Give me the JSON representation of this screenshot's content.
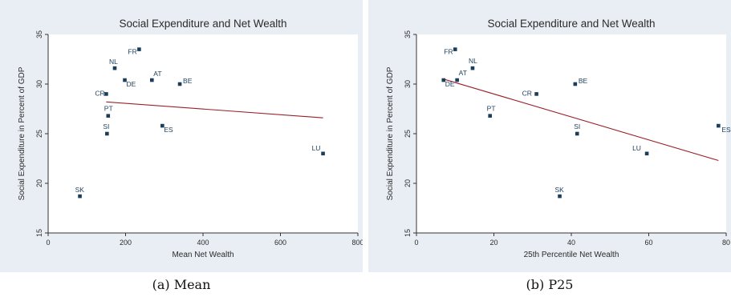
{
  "colors": {
    "outer_bg": "#e8eef3",
    "plot_bg": "#ffffff",
    "marker": "#1c3d5a",
    "label": "#1c3d5a",
    "fit_line": "#9b1f2a"
  },
  "chart_data": [
    {
      "type": "scatter",
      "title": "Social Expenditure and Net Wealth",
      "xlabel": "Mean Net Wealth",
      "ylabel": "Social Expenditure in Percent of GDP",
      "xlim": [
        0,
        800
      ],
      "ylim": [
        15,
        35
      ],
      "xticks": [
        0,
        200,
        400,
        600,
        800
      ],
      "yticks": [
        15,
        20,
        25,
        30,
        35
      ],
      "grid": false,
      "caption": "(a) Mean",
      "points": [
        {
          "label": "FR",
          "x": 235,
          "y": 33.5
        },
        {
          "label": "NL",
          "x": 172,
          "y": 31.6
        },
        {
          "label": "DE",
          "x": 198,
          "y": 30.4
        },
        {
          "label": "AT",
          "x": 268,
          "y": 30.4
        },
        {
          "label": "BE",
          "x": 340,
          "y": 30.0
        },
        {
          "label": "CR",
          "x": 150,
          "y": 29.0
        },
        {
          "label": "PT",
          "x": 155,
          "y": 26.8
        },
        {
          "label": "SI",
          "x": 152,
          "y": 25.0
        },
        {
          "label": "ES",
          "x": 295,
          "y": 25.8
        },
        {
          "label": "LU",
          "x": 710,
          "y": 23.0
        },
        {
          "label": "SK",
          "x": 82,
          "y": 18.7
        }
      ],
      "fit": {
        "x": [
          150,
          710
        ],
        "y": [
          28.2,
          26.6
        ]
      }
    },
    {
      "type": "scatter",
      "title": "Social Expenditure and Net Wealth",
      "xlabel": "25th Percentile Net Wealth",
      "ylabel": "Social Expenditure in Percent of GDP",
      "xlim": [
        0,
        80
      ],
      "ylim": [
        15,
        35
      ],
      "xticks": [
        0,
        20,
        40,
        60,
        80
      ],
      "yticks": [
        15,
        20,
        25,
        30,
        35
      ],
      "grid": false,
      "caption": "(b) P25",
      "points": [
        {
          "label": "FR",
          "x": 10,
          "y": 33.5
        },
        {
          "label": "NL",
          "x": 14.5,
          "y": 31.6
        },
        {
          "label": "DE",
          "x": 7,
          "y": 30.4
        },
        {
          "label": "AT",
          "x": 10.5,
          "y": 30.4
        },
        {
          "label": "BE",
          "x": 41,
          "y": 30.0
        },
        {
          "label": "CR",
          "x": 31,
          "y": 29.0
        },
        {
          "label": "PT",
          "x": 19,
          "y": 26.8
        },
        {
          "label": "SI",
          "x": 41.5,
          "y": 25.0
        },
        {
          "label": "LU",
          "x": 59.5,
          "y": 23.0
        },
        {
          "label": "ES",
          "x": 78,
          "y": 25.8
        },
        {
          "label": "SK",
          "x": 37,
          "y": 18.7
        }
      ],
      "fit": {
        "x": [
          7,
          78
        ],
        "y": [
          30.5,
          22.3
        ]
      }
    }
  ]
}
